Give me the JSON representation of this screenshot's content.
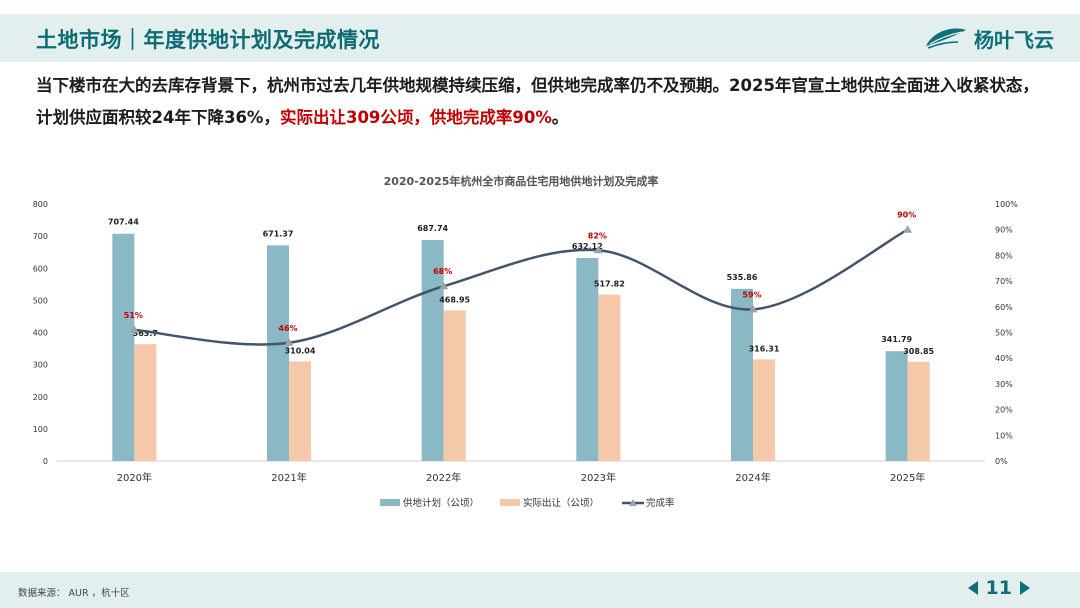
{
  "header": {
    "title": "土地市场｜年度供地计划及完成情况",
    "logo_text": "杨叶飞云",
    "logo_icon": "leaf-icon"
  },
  "intro": {
    "text_before": "当下楼市在大的去库存背景下，杭州市过去几年供地规模持续压缩，但供地完成率仍不及预期。2025年官宣土地供应全面进入收紧状态，计划供应面积较24年下降36%，",
    "highlight": "实际出让309公顷，供地完成率90%",
    "text_after": "。"
  },
  "colors": {
    "brand": "#0d6f78",
    "plan_bar": "#8ab8c5",
    "actual_bar": "#f6c8aa",
    "rate_line": "#44546a",
    "rate_label": "#c00000",
    "highlight": "#c00000"
  },
  "chart_data": {
    "type": "bar",
    "title": "2020-2025年杭州全市商品住宅用地供地计划及完成率",
    "categories": [
      "2020年",
      "2021年",
      "2022年",
      "2023年",
      "2024年",
      "2025年"
    ],
    "series": [
      {
        "name": "供地计划（公顷）",
        "type": "bar",
        "axis": "left",
        "values": [
          707.44,
          671.37,
          687.74,
          632.12,
          535.86,
          341.79
        ],
        "labels": [
          "707.44",
          "671.37",
          "687.74",
          "632.12",
          "535.86",
          "341.79"
        ]
      },
      {
        "name": "实际出让（公顷）",
        "type": "bar",
        "axis": "left",
        "values": [
          363.7,
          310.04,
          468.95,
          517.82,
          316.31,
          308.85
        ],
        "labels": [
          "363.7",
          "310.04",
          "468.95",
          "517.82",
          "316.31",
          "308.85"
        ]
      },
      {
        "name": "完成率",
        "type": "line",
        "axis": "right",
        "values": [
          51,
          46,
          68,
          82,
          59,
          90
        ],
        "labels": [
          "51%",
          "46%",
          "68%",
          "82%",
          "59%",
          "90%"
        ]
      }
    ],
    "ylim": [
      0,
      800
    ],
    "y_ticks": [
      "0",
      "100",
      "200",
      "300",
      "400",
      "500",
      "600",
      "700",
      "800"
    ],
    "y2lim": [
      0,
      100
    ],
    "y2_ticks": [
      "0%",
      "10%",
      "20%",
      "30%",
      "40%",
      "50%",
      "60%",
      "70%",
      "80%",
      "90%",
      "100%"
    ],
    "grid": false,
    "legend_position": "bottom"
  },
  "footer": {
    "source": "数据来源： AUR ，杭十区",
    "page": "11"
  }
}
